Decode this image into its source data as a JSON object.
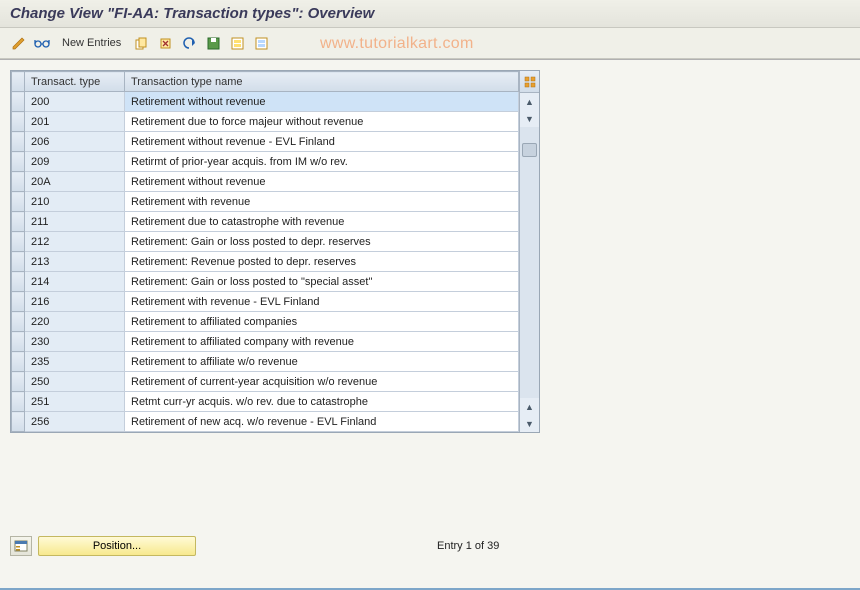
{
  "title": "Change View \"FI-AA: Transaction types\": Overview",
  "toolbar": {
    "new_entries_label": "New Entries"
  },
  "watermark": "www.tutorialkart.com",
  "columns": {
    "code": "Transact. type",
    "name": "Transaction type name"
  },
  "rows": [
    {
      "code": "200",
      "name": "Retirement without revenue",
      "selected": true
    },
    {
      "code": "201",
      "name": "Retirement due to force majeur without revenue"
    },
    {
      "code": "206",
      "name": "Retirement without revenue - EVL Finland"
    },
    {
      "code": "209",
      "name": "Retirmt of prior-year acquis. from IM w/o rev."
    },
    {
      "code": "20A",
      "name": "Retirement without revenue"
    },
    {
      "code": "210",
      "name": "Retirement with revenue"
    },
    {
      "code": "211",
      "name": "Retirement due to catastrophe with revenue"
    },
    {
      "code": "212",
      "name": "Retirement: Gain or loss posted to depr. reserves"
    },
    {
      "code": "213",
      "name": "Retirement: Revenue posted to depr. reserves"
    },
    {
      "code": "214",
      "name": "Retirement: Gain or loss posted to \"special asset\""
    },
    {
      "code": "216",
      "name": "Retirement with revenue - EVL Finland"
    },
    {
      "code": "220",
      "name": "Retirement to affiliated companies"
    },
    {
      "code": "230",
      "name": "Retirement to affiliated company with revenue"
    },
    {
      "code": "235",
      "name": "Retirement to affiliate w/o revenue"
    },
    {
      "code": "250",
      "name": "Retirement of current-year acquisition w/o revenue"
    },
    {
      "code": "251",
      "name": "Retmt curr-yr acquis. w/o rev. due to catastrophe"
    },
    {
      "code": "256",
      "name": "Retirement of new acq. w/o revenue - EVL Finland"
    }
  ],
  "footer": {
    "position_label": "Position...",
    "entry_text": "Entry 1 of 39"
  },
  "colors": {
    "title_color": "#3a3a5a",
    "header_bg_top": "#e6edf5",
    "header_bg_bottom": "#d2dde9",
    "code_cell_bg": "#e3ecf5",
    "selected_bg": "#cfe3f7",
    "border": "#a8b4c2",
    "pos_btn_bg": "#f7e98e",
    "watermark_color": "#f2b28a"
  }
}
